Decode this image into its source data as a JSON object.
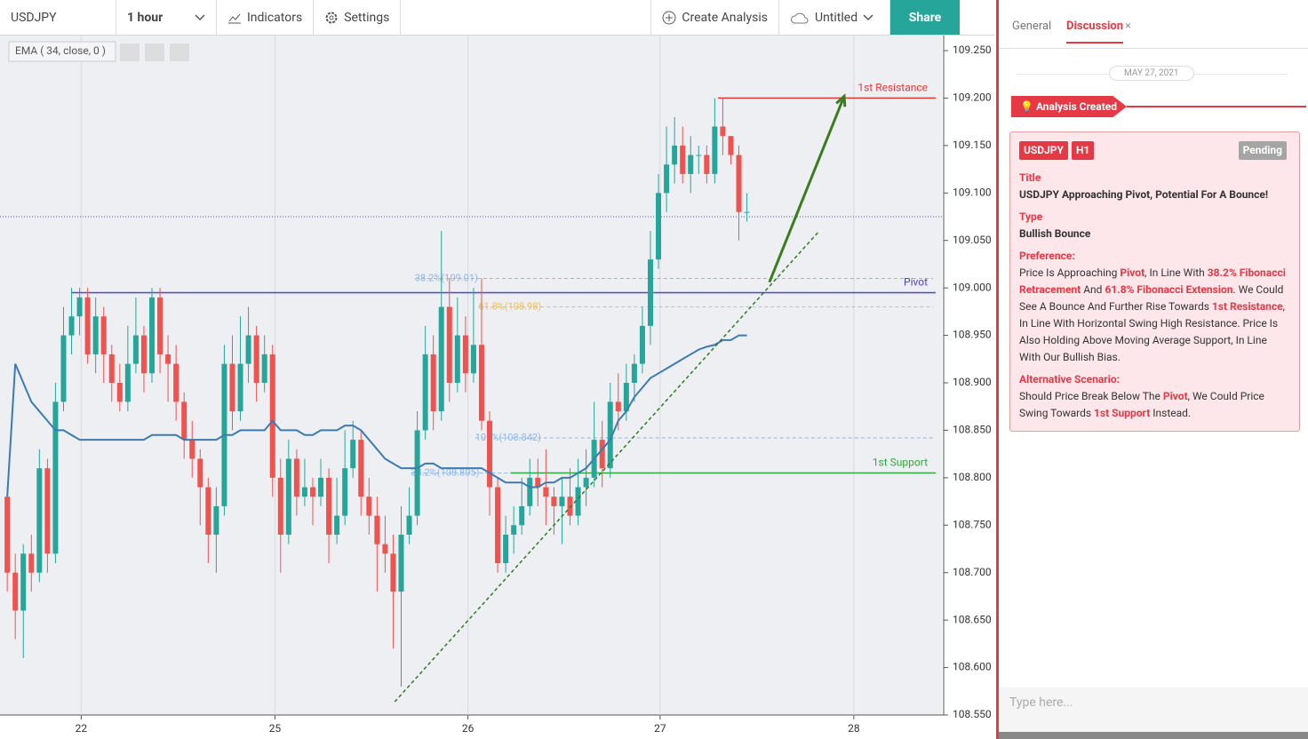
{
  "toolbar": {
    "symbol": "USDJPY",
    "interval": "1 hour",
    "indicators": "Indicators",
    "settings": "Settings",
    "create": "Create Analysis",
    "untitled": "Untitled",
    "share": "Share"
  },
  "chart_data": {
    "type": "candlestick",
    "up_color": "#26a69a",
    "down_color": "#ef5350",
    "candles": [
      [
        108.78,
        108.79,
        108.68,
        108.7
      ],
      [
        108.7,
        108.72,
        108.63,
        108.66
      ],
      [
        108.66,
        108.73,
        108.61,
        108.72
      ],
      [
        108.72,
        108.74,
        108.68,
        108.7
      ],
      [
        108.7,
        108.83,
        108.69,
        108.81
      ],
      [
        108.81,
        108.82,
        108.7,
        108.72
      ],
      [
        108.72,
        108.9,
        108.71,
        108.88
      ],
      [
        108.88,
        108.98,
        108.87,
        108.95
      ],
      [
        108.95,
        109.0,
        108.93,
        108.97
      ],
      [
        108.97,
        109.0,
        108.95,
        108.99
      ],
      [
        108.99,
        109.0,
        108.92,
        108.93
      ],
      [
        108.93,
        108.99,
        108.91,
        108.97
      ],
      [
        108.97,
        108.98,
        108.9,
        108.93
      ],
      [
        108.93,
        108.94,
        108.88,
        108.9
      ],
      [
        108.9,
        108.92,
        108.87,
        108.88
      ],
      [
        108.88,
        108.96,
        108.87,
        108.92
      ],
      [
        108.92,
        108.99,
        108.91,
        108.95
      ],
      [
        108.95,
        108.96,
        108.89,
        108.91
      ],
      [
        108.91,
        109.0,
        108.9,
        108.99
      ],
      [
        108.99,
        109.0,
        108.91,
        108.93
      ],
      [
        108.93,
        108.95,
        108.88,
        108.92
      ],
      [
        108.92,
        108.94,
        108.86,
        108.88
      ],
      [
        108.88,
        108.89,
        108.82,
        108.84
      ],
      [
        108.84,
        108.86,
        108.8,
        108.82
      ],
      [
        108.82,
        108.83,
        108.75,
        108.79
      ],
      [
        108.79,
        108.8,
        108.71,
        108.74
      ],
      [
        108.74,
        108.79,
        108.7,
        108.77
      ],
      [
        108.77,
        108.94,
        108.76,
        108.92
      ],
      [
        108.92,
        108.95,
        108.85,
        108.87
      ],
      [
        108.87,
        108.97,
        108.86,
        108.92
      ],
      [
        108.92,
        108.98,
        108.9,
        108.95
      ],
      [
        108.95,
        108.96,
        108.88,
        108.9
      ],
      [
        108.9,
        108.95,
        108.89,
        108.93
      ],
      [
        108.93,
        108.94,
        108.78,
        108.8
      ],
      [
        108.8,
        108.82,
        108.7,
        108.74
      ],
      [
        108.74,
        108.84,
        108.73,
        108.82
      ],
      [
        108.82,
        108.83,
        108.76,
        108.78
      ],
      [
        108.78,
        108.82,
        108.77,
        108.79
      ],
      [
        108.79,
        108.8,
        108.75,
        108.78
      ],
      [
        108.78,
        108.82,
        108.77,
        108.8
      ],
      [
        108.8,
        108.81,
        108.71,
        108.74
      ],
      [
        108.74,
        108.8,
        108.73,
        108.76
      ],
      [
        108.76,
        108.85,
        108.75,
        108.81
      ],
      [
        108.81,
        108.86,
        108.8,
        108.84
      ],
      [
        108.84,
        108.85,
        108.76,
        108.78
      ],
      [
        108.78,
        108.8,
        108.74,
        108.76
      ],
      [
        108.76,
        108.78,
        108.68,
        108.73
      ],
      [
        108.73,
        108.76,
        108.7,
        108.72
      ],
      [
        108.72,
        108.74,
        108.62,
        108.68
      ],
      [
        108.68,
        108.77,
        108.58,
        108.74
      ],
      [
        108.74,
        108.79,
        108.73,
        108.76
      ],
      [
        108.76,
        108.87,
        108.75,
        108.85
      ],
      [
        108.85,
        108.96,
        108.84,
        108.93
      ],
      [
        108.93,
        108.95,
        108.85,
        108.87
      ],
      [
        108.87,
        109.06,
        108.86,
        108.98
      ],
      [
        108.98,
        109.01,
        108.88,
        108.9
      ],
      [
        108.9,
        108.99,
        108.89,
        108.95
      ],
      [
        108.95,
        108.97,
        108.89,
        108.91
      ],
      [
        108.91,
        109.0,
        108.9,
        108.94
      ],
      [
        108.94,
        109.01,
        108.85,
        108.86
      ],
      [
        108.86,
        108.87,
        108.76,
        108.79
      ],
      [
        108.79,
        108.8,
        108.7,
        108.71
      ],
      [
        108.71,
        108.76,
        108.7,
        108.74
      ],
      [
        108.74,
        108.77,
        108.72,
        108.75
      ],
      [
        108.75,
        108.8,
        108.74,
        108.77
      ],
      [
        108.77,
        108.82,
        108.76,
        108.8
      ],
      [
        108.8,
        108.82,
        108.77,
        108.79
      ],
      [
        108.79,
        108.83,
        108.75,
        108.78
      ],
      [
        108.78,
        108.79,
        108.74,
        108.77
      ],
      [
        108.77,
        108.8,
        108.73,
        108.78
      ],
      [
        108.78,
        108.81,
        108.75,
        108.76
      ],
      [
        108.76,
        108.82,
        108.75,
        108.79
      ],
      [
        108.79,
        108.83,
        108.77,
        108.8
      ],
      [
        108.8,
        108.88,
        108.79,
        108.84
      ],
      [
        108.84,
        108.86,
        108.79,
        108.81
      ],
      [
        108.81,
        108.9,
        108.8,
        108.88
      ],
      [
        108.88,
        108.91,
        108.85,
        108.87
      ],
      [
        108.87,
        108.92,
        108.86,
        108.9
      ],
      [
        108.9,
        108.93,
        108.88,
        108.92
      ],
      [
        108.92,
        108.98,
        108.91,
        108.96
      ],
      [
        108.96,
        109.06,
        108.94,
        109.03
      ],
      [
        109.03,
        109.12,
        109.02,
        109.1
      ],
      [
        109.1,
        109.17,
        109.08,
        109.13
      ],
      [
        109.13,
        109.18,
        109.11,
        109.15
      ],
      [
        109.15,
        109.17,
        109.11,
        109.12
      ],
      [
        109.12,
        109.16,
        109.1,
        109.14
      ],
      [
        109.14,
        109.15,
        109.12,
        109.14
      ],
      [
        109.14,
        109.15,
        109.11,
        109.12
      ],
      [
        109.12,
        109.2,
        109.11,
        109.17
      ],
      [
        109.17,
        109.2,
        109.14,
        109.16
      ],
      [
        109.16,
        109.16,
        109.13,
        109.14
      ],
      [
        109.14,
        109.15,
        109.05,
        109.08
      ],
      [
        109.08,
        109.1,
        109.07,
        109.08
      ]
    ],
    "series": [
      {
        "name": "EMA ( 34, close, 0 )",
        "color": "#3b7bb0",
        "values": [
          108.78,
          108.92,
          108.9,
          108.88,
          108.87,
          108.86,
          108.85,
          108.85,
          108.845,
          108.84,
          108.84,
          108.84,
          108.84,
          108.84,
          108.84,
          108.84,
          108.84,
          108.84,
          108.845,
          108.845,
          108.845,
          108.845,
          108.84,
          108.84,
          108.84,
          108.84,
          108.84,
          108.845,
          108.845,
          108.85,
          108.85,
          108.85,
          108.85,
          108.86,
          108.85,
          108.85,
          108.85,
          108.845,
          108.845,
          108.85,
          108.85,
          108.85,
          108.855,
          108.855,
          108.85,
          108.84,
          108.83,
          108.82,
          108.815,
          108.81,
          108.81,
          108.81,
          108.815,
          108.815,
          108.81,
          108.81,
          108.81,
          108.81,
          108.81,
          108.81,
          108.805,
          108.8,
          108.795,
          108.795,
          108.795,
          108.79,
          108.79,
          108.795,
          108.795,
          108.8,
          108.8,
          108.805,
          108.81,
          108.82,
          108.83,
          108.84,
          108.86,
          108.87,
          108.885,
          108.895,
          108.905,
          108.91,
          108.915,
          108.92,
          108.925,
          108.93,
          108.935,
          108.938,
          108.94,
          108.945,
          108.945,
          108.95,
          108.95
        ]
      }
    ],
    "levels": [
      {
        "name": "1st Resistance",
        "value": 109.2,
        "from": 88.4,
        "color": "#e53935"
      },
      {
        "name": "Pivot",
        "value": 108.995,
        "from": 8,
        "color": "#5046c8"
      },
      {
        "name": "1st Support",
        "value": 108.805,
        "from": 62.6,
        "color": "#2eaa3c"
      }
    ],
    "fib": [
      {
        "label": "38.2%(109.01)",
        "value": 109.01,
        "from": 50.7,
        "color": "#8fb6e6"
      },
      {
        "label": "61.8%(108.98)",
        "value": 108.98,
        "from": 58.6,
        "color": "#f0c040"
      },
      {
        "label": "100%(108.842)",
        "value": 108.842,
        "from": 58.2,
        "color": "#8fb6e6"
      },
      {
        "label": "38.2%(108.805)",
        "value": 108.805,
        "from": 50.2,
        "color": "#8fb6e6"
      }
    ],
    "last_price": 109.075,
    "trendline": {
      "x": [
        48.2,
        100.9
      ],
      "values": [
        108.564,
        109.059
      ]
    },
    "arrow": {
      "x": [
        94.8,
        104.1
      ],
      "values": [
        109.006,
        109.202
      ]
    },
    "xlim": [
      -0.9,
      115.7
    ],
    "xticks": [
      {
        "value": 9.2,
        "label": "22"
      },
      {
        "value": 33.3,
        "label": "25"
      },
      {
        "value": 57.3,
        "label": "26"
      },
      {
        "value": 81.2,
        "label": "27"
      },
      {
        "value": 105.3,
        "label": "28"
      }
    ],
    "ylim": [
      108.55,
      109.25
    ],
    "yticks": [
      {
        "value": 109.25,
        "label": "109.250"
      },
      {
        "value": 109.2,
        "label": "109.200"
      },
      {
        "value": 109.15,
        "label": "109.150"
      },
      {
        "value": 109.1,
        "label": "109.100"
      },
      {
        "value": 109.05,
        "label": "109.050"
      },
      {
        "value": 109,
        "label": "109.000"
      },
      {
        "value": 108.95,
        "label": "108.950"
      },
      {
        "value": 108.9,
        "label": "108.900"
      },
      {
        "value": 108.85,
        "label": "108.850"
      },
      {
        "value": 108.8,
        "label": "108.800"
      },
      {
        "value": 108.75,
        "label": "108.750"
      },
      {
        "value": 108.7,
        "label": "108.700"
      },
      {
        "value": 108.65,
        "label": "108.650"
      },
      {
        "value": 108.6,
        "label": "108.600"
      },
      {
        "value": 108.55,
        "label": "108.550"
      }
    ]
  },
  "panel": {
    "tabs": [
      "General",
      "Discussion"
    ],
    "date": "MAY 27, 2021",
    "event": "Analysis Created",
    "symbol": "USDJPY",
    "timeframe": "H1",
    "status": "Pending",
    "title_label": "Title",
    "title": "USDJPY Approaching Pivot, Potential For A Bounce!",
    "type_label": "Type",
    "type": "Bullish Bounce",
    "preference_label": "Preference:",
    "preference": [
      "Price Is Approaching ",
      {
        "text": "Pivot"
      },
      ", In Line With ",
      {
        "text": "38.2% Fibonacci Retracement"
      },
      " And ",
      {
        "text": "61.8% Fibonacci Extension"
      },
      ". We Could See A Bounce And Further Rise Towards ",
      {
        "text": "1st Resistance"
      },
      ", In Line With Horizontal Swing High Resistance. Price Is Also Holding Above Moving Average Support, In Line With Our Bullish Bias."
    ],
    "alternative_label": "Alternative Scenario:",
    "alternative": [
      "Should Price Break Below The ",
      {
        "text": "Pivot"
      },
      ", We Could Price Swing Towards ",
      {
        "text": "1st Support"
      },
      " Instead."
    ],
    "input_placeholder": "Type here..."
  }
}
